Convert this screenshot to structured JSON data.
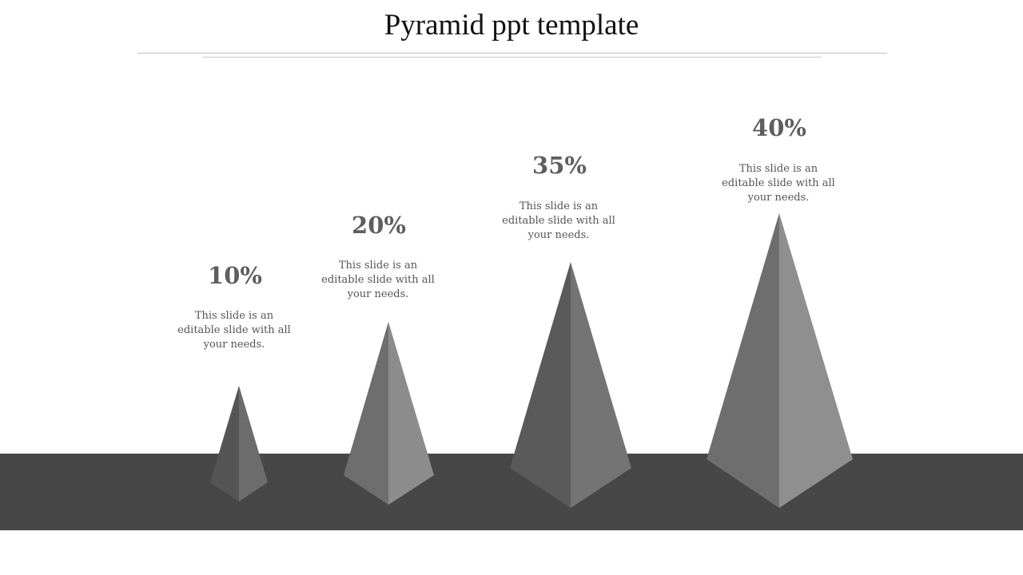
{
  "title": "Pyramid ppt template",
  "colors": {
    "floor": "#474747",
    "left_face_shades": [
      "#555555",
      "#6e6e6e",
      "#5a5a5a",
      "#6e6e6e"
    ],
    "right_face_shades": [
      "#6c6c6c",
      "#8c8c8c",
      "#747474",
      "#8f8f8f"
    ],
    "text": "#5e5e5e"
  },
  "items": [
    {
      "percent": "10%",
      "text": "This slide is an editable slide with all your needs."
    },
    {
      "percent": "20%",
      "text": "This slide is an editable slide with all your needs."
    },
    {
      "percent": "35%",
      "text": "This slide is an editable slide with all your needs."
    },
    {
      "percent": "40%",
      "text": "This slide is an editable slide with all your needs."
    }
  ]
}
